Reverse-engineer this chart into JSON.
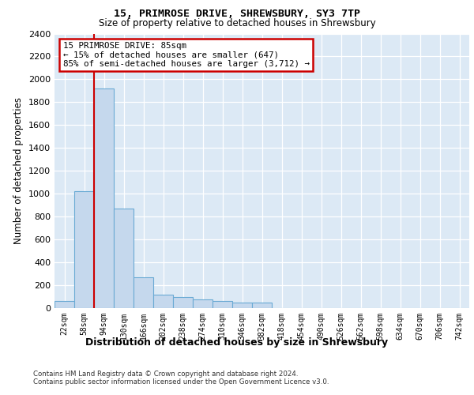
{
  "title": "15, PRIMROSE DRIVE, SHREWSBURY, SY3 7TP",
  "subtitle": "Size of property relative to detached houses in Shrewsbury",
  "xlabel": "Distribution of detached houses by size in Shrewsbury",
  "ylabel": "Number of detached properties",
  "bar_labels": [
    "22sqm",
    "58sqm",
    "94sqm",
    "130sqm",
    "166sqm",
    "202sqm",
    "238sqm",
    "274sqm",
    "310sqm",
    "346sqm",
    "382sqm",
    "418sqm",
    "454sqm",
    "490sqm",
    "526sqm",
    "562sqm",
    "598sqm",
    "634sqm",
    "670sqm",
    "706sqm",
    "742sqm"
  ],
  "bar_values": [
    60,
    1020,
    1920,
    870,
    270,
    120,
    95,
    75,
    60,
    50,
    45,
    0,
    0,
    0,
    0,
    0,
    0,
    0,
    0,
    0,
    0
  ],
  "bar_color": "#c5d8ed",
  "bar_edge_color": "#6aaad4",
  "ylim": [
    0,
    2400
  ],
  "yticks": [
    0,
    200,
    400,
    600,
    800,
    1000,
    1200,
    1400,
    1600,
    1800,
    2000,
    2200,
    2400
  ],
  "property_line_color": "#cc0000",
  "annotation_text": "15 PRIMROSE DRIVE: 85sqm\n← 15% of detached houses are smaller (647)\n85% of semi-detached houses are larger (3,712) →",
  "annotation_box_facecolor": "#ffffff",
  "annotation_border_color": "#cc0000",
  "footer_line1": "Contains HM Land Registry data © Crown copyright and database right 2024.",
  "footer_line2": "Contains public sector information licensed under the Open Government Licence v3.0.",
  "plot_bg_color": "#dce9f5",
  "grid_color": "#ffffff"
}
